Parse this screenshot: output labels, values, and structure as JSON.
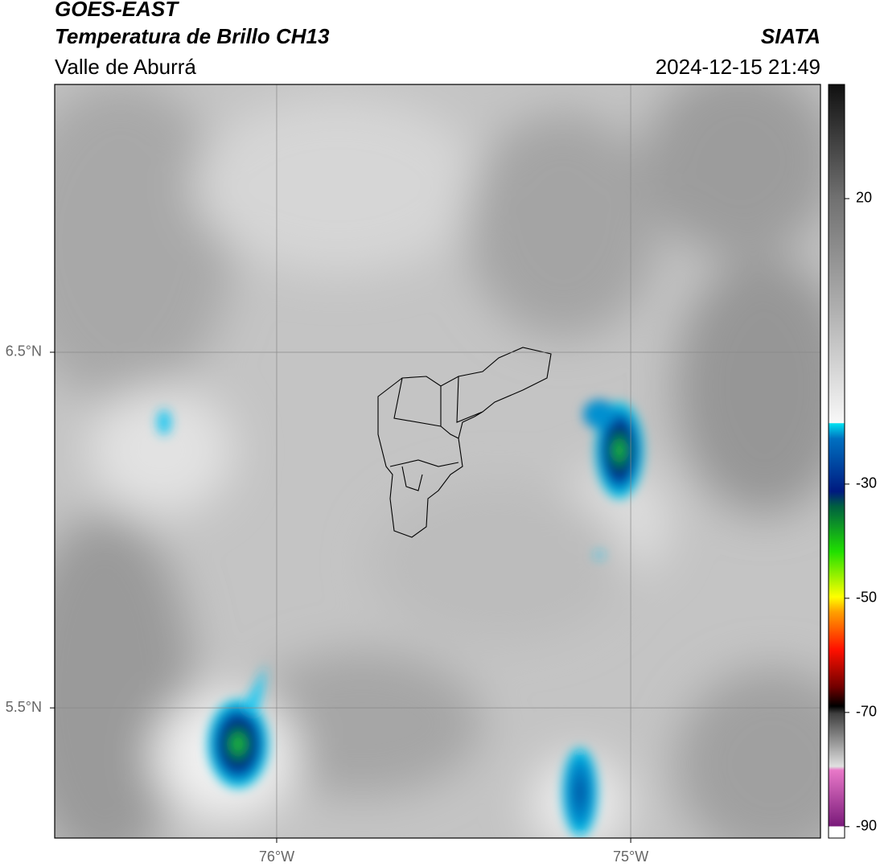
{
  "header": {
    "title": "GOES-EAST",
    "subtitle": "Temperatura de Brillo CH13",
    "region": "Valle de Aburrá",
    "source": "SIATA",
    "datetime": "2024-12-15 21:49"
  },
  "map": {
    "xlim": [
      -76.627,
      -74.464
    ],
    "ylim": [
      5.134,
      7.253
    ],
    "xticks": [
      {
        "value": -76,
        "label": "76°W"
      },
      {
        "value": -75,
        "label": "75°W"
      }
    ],
    "yticks": [
      {
        "value": 6.5,
        "label": "6.5°N"
      },
      {
        "value": 5.5,
        "label": "5.5°N"
      }
    ],
    "grid": true
  },
  "colorbar": {
    "lim": [
      -92,
      40
    ],
    "ticks": [
      20,
      -30,
      -50,
      -70,
      -90
    ]
  }
}
